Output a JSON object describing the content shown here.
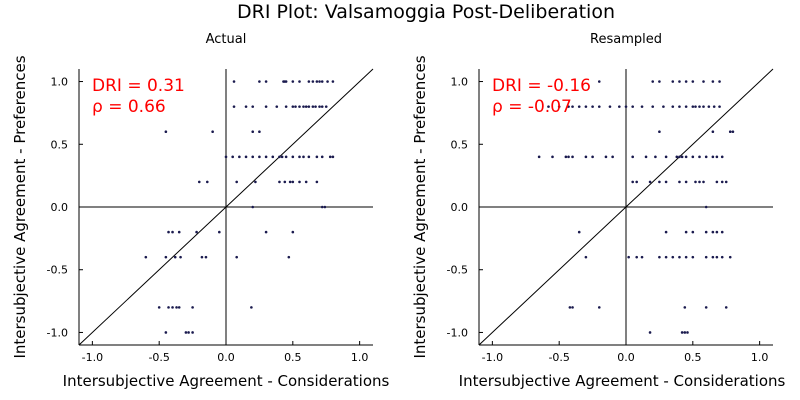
{
  "title": "DRI Plot: Valsamoggia Post-Deliberation",
  "colors": {
    "points": "#1a1a4e",
    "annotation": "#ff0000",
    "axes": "#000000"
  },
  "chart_data": [
    {
      "type": "scatter",
      "title": "Actual",
      "xlabel": "Intersubjective Agreement - Considerations",
      "ylabel": "Intersubjective Agreement - Preferences",
      "xlim": [
        -1.1,
        1.1
      ],
      "ylim": [
        -1.1,
        1.1
      ],
      "xticks": [
        "-1.0",
        "-0.5",
        "0.0",
        "0.5",
        "1.0"
      ],
      "yticks": [
        "-1.0",
        "-0.5",
        "0.0",
        "0.5",
        "1.0"
      ],
      "annotations": [
        "DRI = 0.31",
        "ρ = 0.66"
      ],
      "reference_lines": [
        "x = 0",
        "y = 0",
        "y = x"
      ],
      "points": [
        [
          0.06,
          1.0
        ],
        [
          0.25,
          1.0
        ],
        [
          0.3,
          1.0
        ],
        [
          0.43,
          1.0
        ],
        [
          0.44,
          1.0
        ],
        [
          0.45,
          1.0
        ],
        [
          0.5,
          1.0
        ],
        [
          0.55,
          1.0
        ],
        [
          0.62,
          1.0
        ],
        [
          0.65,
          1.0
        ],
        [
          0.68,
          1.0
        ],
        [
          0.7,
          1.0
        ],
        [
          0.72,
          1.0
        ],
        [
          0.76,
          1.0
        ],
        [
          0.8,
          1.0
        ],
        [
          0.06,
          0.8
        ],
        [
          0.15,
          0.8
        ],
        [
          0.2,
          0.8
        ],
        [
          0.3,
          0.8
        ],
        [
          0.38,
          0.8
        ],
        [
          0.45,
          0.8
        ],
        [
          0.5,
          0.8
        ],
        [
          0.52,
          0.8
        ],
        [
          0.55,
          0.8
        ],
        [
          0.58,
          0.8
        ],
        [
          0.6,
          0.8
        ],
        [
          0.62,
          0.8
        ],
        [
          0.65,
          0.8
        ],
        [
          0.67,
          0.8
        ],
        [
          0.7,
          0.8
        ],
        [
          0.72,
          0.8
        ],
        [
          0.75,
          0.8
        ],
        [
          -0.45,
          0.6
        ],
        [
          -0.1,
          0.6
        ],
        [
          0.2,
          0.6
        ],
        [
          0.25,
          0.6
        ],
        [
          0.0,
          0.4
        ],
        [
          0.05,
          0.4
        ],
        [
          0.1,
          0.4
        ],
        [
          0.15,
          0.4
        ],
        [
          0.2,
          0.4
        ],
        [
          0.25,
          0.4
        ],
        [
          0.3,
          0.4
        ],
        [
          0.35,
          0.4
        ],
        [
          0.4,
          0.4
        ],
        [
          0.42,
          0.4
        ],
        [
          0.45,
          0.4
        ],
        [
          0.5,
          0.4
        ],
        [
          0.55,
          0.4
        ],
        [
          0.58,
          0.4
        ],
        [
          0.62,
          0.4
        ],
        [
          0.68,
          0.4
        ],
        [
          0.72,
          0.4
        ],
        [
          0.78,
          0.4
        ],
        [
          0.8,
          0.4
        ],
        [
          -0.2,
          0.2
        ],
        [
          -0.14,
          0.2
        ],
        [
          0.08,
          0.2
        ],
        [
          0.22,
          0.2
        ],
        [
          0.4,
          0.2
        ],
        [
          0.44,
          0.2
        ],
        [
          0.48,
          0.2
        ],
        [
          0.5,
          0.2
        ],
        [
          0.55,
          0.2
        ],
        [
          0.6,
          0.2
        ],
        [
          0.68,
          0.2
        ],
        [
          0.2,
          0.0
        ],
        [
          0.72,
          0.0
        ],
        [
          0.74,
          0.0
        ],
        [
          -0.43,
          -0.2
        ],
        [
          -0.4,
          -0.2
        ],
        [
          -0.35,
          -0.2
        ],
        [
          -0.22,
          -0.2
        ],
        [
          -0.05,
          -0.2
        ],
        [
          0.3,
          -0.2
        ],
        [
          0.5,
          -0.2
        ],
        [
          -0.6,
          -0.4
        ],
        [
          -0.45,
          -0.4
        ],
        [
          -0.38,
          -0.4
        ],
        [
          -0.34,
          -0.4
        ],
        [
          -0.18,
          -0.4
        ],
        [
          -0.15,
          -0.4
        ],
        [
          0.08,
          -0.4
        ],
        [
          0.47,
          -0.4
        ],
        [
          -0.5,
          -0.8
        ],
        [
          -0.43,
          -0.8
        ],
        [
          -0.4,
          -0.8
        ],
        [
          -0.37,
          -0.8
        ],
        [
          -0.35,
          -0.8
        ],
        [
          -0.25,
          -0.8
        ],
        [
          0.19,
          -0.8
        ],
        [
          -0.45,
          -1.0
        ],
        [
          -0.3,
          -1.0
        ],
        [
          -0.28,
          -1.0
        ],
        [
          -0.25,
          -1.0
        ]
      ]
    },
    {
      "type": "scatter",
      "title": "Resampled",
      "xlabel": "Intersubjective Agreement - Considerations",
      "ylabel": "Intersubjective Agreement - Preferences",
      "xlim": [
        -1.1,
        1.1
      ],
      "ylim": [
        -1.1,
        1.1
      ],
      "xticks": [
        "-1.0",
        "-0.5",
        "0.0",
        "0.5",
        "1.0"
      ],
      "yticks": [
        "-1.0",
        "-0.5",
        "0.0",
        "0.5",
        "1.0"
      ],
      "annotations": [
        "DRI = -0.16",
        "ρ = -0.07"
      ],
      "reference_lines": [
        "x = 0",
        "y = 0",
        "y = x"
      ],
      "points": [
        [
          -0.2,
          1.0
        ],
        [
          0.2,
          1.0
        ],
        [
          0.25,
          1.0
        ],
        [
          0.35,
          1.0
        ],
        [
          0.4,
          1.0
        ],
        [
          0.45,
          1.0
        ],
        [
          0.5,
          1.0
        ],
        [
          0.58,
          1.0
        ],
        [
          0.65,
          1.0
        ],
        [
          0.7,
          1.0
        ],
        [
          -0.58,
          0.8
        ],
        [
          -0.5,
          0.8
        ],
        [
          -0.43,
          0.8
        ],
        [
          -0.4,
          0.8
        ],
        [
          -0.35,
          0.8
        ],
        [
          -0.3,
          0.8
        ],
        [
          -0.25,
          0.8
        ],
        [
          -0.2,
          0.8
        ],
        [
          -0.12,
          0.8
        ],
        [
          -0.05,
          0.8
        ],
        [
          0.0,
          0.8
        ],
        [
          0.05,
          0.8
        ],
        [
          0.12,
          0.8
        ],
        [
          0.2,
          0.8
        ],
        [
          0.28,
          0.8
        ],
        [
          0.35,
          0.8
        ],
        [
          0.4,
          0.8
        ],
        [
          0.45,
          0.8
        ],
        [
          0.5,
          0.8
        ],
        [
          0.52,
          0.8
        ],
        [
          0.55,
          0.8
        ],
        [
          0.58,
          0.8
        ],
        [
          0.62,
          0.8
        ],
        [
          0.66,
          0.8
        ],
        [
          0.7,
          0.8
        ],
        [
          0.25,
          0.6
        ],
        [
          0.65,
          0.6
        ],
        [
          0.78,
          0.6
        ],
        [
          0.8,
          0.6
        ],
        [
          -0.65,
          0.4
        ],
        [
          -0.55,
          0.4
        ],
        [
          -0.45,
          0.4
        ],
        [
          -0.43,
          0.4
        ],
        [
          -0.4,
          0.4
        ],
        [
          -0.3,
          0.4
        ],
        [
          -0.25,
          0.4
        ],
        [
          -0.15,
          0.4
        ],
        [
          -0.1,
          0.4
        ],
        [
          0.05,
          0.4
        ],
        [
          0.15,
          0.4
        ],
        [
          0.22,
          0.4
        ],
        [
          0.3,
          0.4
        ],
        [
          0.38,
          0.4
        ],
        [
          0.4,
          0.4
        ],
        [
          0.42,
          0.4
        ],
        [
          0.45,
          0.4
        ],
        [
          0.5,
          0.4
        ],
        [
          0.55,
          0.4
        ],
        [
          0.6,
          0.4
        ],
        [
          0.65,
          0.4
        ],
        [
          0.68,
          0.4
        ],
        [
          0.72,
          0.4
        ],
        [
          0.05,
          0.2
        ],
        [
          0.08,
          0.2
        ],
        [
          0.18,
          0.2
        ],
        [
          0.25,
          0.2
        ],
        [
          0.3,
          0.2
        ],
        [
          0.4,
          0.2
        ],
        [
          0.45,
          0.2
        ],
        [
          0.52,
          0.2
        ],
        [
          0.55,
          0.2
        ],
        [
          0.58,
          0.2
        ],
        [
          0.68,
          0.2
        ],
        [
          0.72,
          0.2
        ],
        [
          0.75,
          0.2
        ],
        [
          0.6,
          0.0
        ],
        [
          -0.35,
          -0.2
        ],
        [
          0.3,
          -0.2
        ],
        [
          0.45,
          -0.2
        ],
        [
          0.5,
          -0.2
        ],
        [
          0.6,
          -0.2
        ],
        [
          0.65,
          -0.2
        ],
        [
          0.68,
          -0.2
        ],
        [
          0.72,
          -0.2
        ],
        [
          -0.3,
          -0.4
        ],
        [
          0.02,
          -0.4
        ],
        [
          0.08,
          -0.4
        ],
        [
          0.12,
          -0.4
        ],
        [
          0.25,
          -0.4
        ],
        [
          0.3,
          -0.4
        ],
        [
          0.35,
          -0.4
        ],
        [
          0.4,
          -0.4
        ],
        [
          0.45,
          -0.4
        ],
        [
          0.5,
          -0.4
        ],
        [
          0.6,
          -0.4
        ],
        [
          0.65,
          -0.4
        ],
        [
          0.68,
          -0.4
        ],
        [
          0.72,
          -0.4
        ],
        [
          0.78,
          -0.4
        ],
        [
          -0.42,
          -0.8
        ],
        [
          -0.4,
          -0.8
        ],
        [
          -0.2,
          -0.8
        ],
        [
          0.44,
          -0.8
        ],
        [
          0.6,
          -0.8
        ],
        [
          0.75,
          -0.8
        ],
        [
          0.18,
          -1.0
        ],
        [
          0.42,
          -1.0
        ],
        [
          0.44,
          -1.0
        ],
        [
          0.46,
          -1.0
        ]
      ]
    }
  ]
}
